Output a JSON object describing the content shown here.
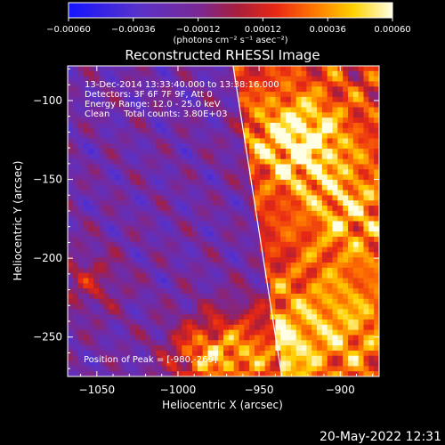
{
  "chart_data": {
    "type": "heatmap",
    "title": "Reconstructed RHESSI Image",
    "xlabel": "Heliocentric X (arcsec)",
    "ylabel": "Heliocentric Y (arcsec)",
    "xlim": [
      -1068,
      -876
    ],
    "ylim": [
      -275,
      -78
    ],
    "x_ticks": [
      -1050,
      -1000,
      -950,
      -900
    ],
    "y_ticks": [
      -250,
      -200,
      -150,
      -100
    ],
    "x_tick_labels": [
      "−1050",
      "−1000",
      "−950",
      "−900"
    ],
    "y_tick_labels": [
      "−250",
      "−200",
      "−150",
      "−100"
    ],
    "colorbar": {
      "range": [
        -0.0006,
        0.0006
      ],
      "ticks": [
        -0.0006,
        -0.00036,
        -0.00012,
        0.00012,
        0.00036,
        0.0006
      ],
      "tick_labels": [
        "−0.00060",
        "−0.00036",
        "−0.00012",
        "0.00012",
        "0.00036",
        "0.00060"
      ],
      "units": "(photons cm⁻² s⁻¹ asec⁻²)",
      "colormap": [
        "#1414ff",
        "#5a32c8",
        "#7a2896",
        "#a81e3c",
        "#e82814",
        "#ff7800",
        "#ffd200",
        "#ffffe6"
      ]
    },
    "annotations": [
      "13-Dec-2014 13:33:40.000 to 13:38:16.000",
      "Detectors: 3F 6F 7F 9F, Att 0",
      "Energy Range: 12.0 - 25.0 keV",
      "Clean     Total counts: 3.80E+03"
    ],
    "peak_label": "Position of Peak = [-980,-269]",
    "peak_position": [
      -980,
      -269
    ],
    "limb_line": [
      [
        -966,
        -78
      ],
      [
        -936,
        -275
      ]
    ],
    "grid": false,
    "legend": "none"
  },
  "footer": {
    "timestamp": "20-May-2022 12:31"
  }
}
